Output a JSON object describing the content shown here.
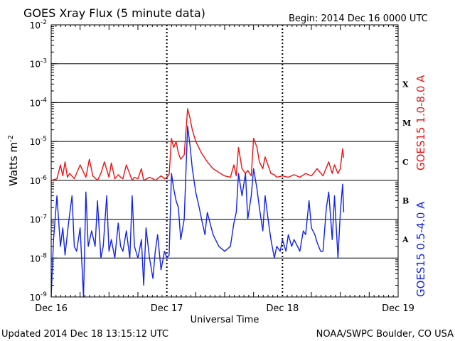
{
  "chart_data": {
    "type": "line",
    "title": "GOES Xray Flux (5 minute data)",
    "begin_label": "Begin:  2014 Dec 16 0000 UTC",
    "xlabel": "Universal Time",
    "ylabel": "Watts m",
    "ylabel_superscript": "-2",
    "y_scale": "log",
    "ylim": [
      1e-09,
      0.01
    ],
    "y_ticks": [
      {
        "base": "10",
        "exp": "-9"
      },
      {
        "base": "10",
        "exp": "-8"
      },
      {
        "base": "10",
        "exp": "-7"
      },
      {
        "base": "10",
        "exp": "-6"
      },
      {
        "base": "10",
        "exp": "-5"
      },
      {
        "base": "10",
        "exp": "-4"
      },
      {
        "base": "10",
        "exp": "-3"
      },
      {
        "base": "10",
        "exp": "-2"
      }
    ],
    "x_ticks": [
      "Dec 16",
      "Dec 17",
      "Dec 18",
      "Dec 19"
    ],
    "x_unit": "days since 2014 Dec 16 0000 UTC",
    "xlim": [
      0,
      3
    ],
    "flare_classes": [
      {
        "label": "A",
        "value": 3e-08
      },
      {
        "label": "B",
        "value": 3e-07
      },
      {
        "label": "C",
        "value": 3e-06
      },
      {
        "label": "M",
        "value": 3e-05
      },
      {
        "label": "X",
        "value": 0.0003
      }
    ],
    "series": [
      {
        "name": "GOES15 1.0-8.0 A",
        "color": "#ee1111",
        "x": [
          0.0,
          0.05,
          0.08,
          0.1,
          0.12,
          0.14,
          0.16,
          0.2,
          0.25,
          0.3,
          0.33,
          0.36,
          0.4,
          0.43,
          0.46,
          0.5,
          0.52,
          0.55,
          0.58,
          0.6,
          0.62,
          0.65,
          0.7,
          0.72,
          0.75,
          0.78,
          0.8,
          0.85,
          0.88,
          0.9,
          0.95,
          0.98,
          1.0,
          1.02,
          1.04,
          1.06,
          1.08,
          1.1,
          1.12,
          1.15,
          1.18,
          1.2,
          1.22,
          1.25,
          1.3,
          1.35,
          1.4,
          1.45,
          1.5,
          1.55,
          1.58,
          1.6,
          1.62,
          1.65,
          1.68,
          1.7,
          1.73,
          1.75,
          1.78,
          1.8,
          1.83,
          1.85,
          1.9,
          1.93,
          1.95,
          2.0,
          2.05,
          2.1,
          2.15,
          2.2,
          2.25,
          2.3,
          2.35,
          2.4,
          2.43,
          2.45,
          2.48,
          2.5,
          2.52,
          2.53
        ],
        "y": [
          1e-06,
          1.1e-06,
          2.5e-06,
          1.3e-06,
          3e-06,
          1.2e-06,
          1.5e-06,
          1.1e-06,
          2.5e-06,
          1.2e-06,
          3.5e-06,
          1.3e-06,
          1e-06,
          1.5e-06,
          3e-06,
          1.2e-06,
          2.8e-06,
          1.1e-06,
          1.4e-06,
          1.2e-06,
          1.1e-06,
          2.5e-06,
          1e-06,
          1.2e-06,
          1.1e-06,
          2e-06,
          1e-06,
          1.2e-06,
          1.1e-06,
          1e-06,
          1.3e-06,
          1.1e-06,
          1.2e-06,
          1.4e-06,
          1.2e-05,
          7e-06,
          1e-05,
          5e-06,
          3.5e-06,
          4.5e-06,
          7e-05,
          4e-05,
          2e-05,
          1e-05,
          5e-06,
          3e-06,
          2e-06,
          1.6e-06,
          1.3e-06,
          1.2e-06,
          2.5e-06,
          1.3e-06,
          7e-06,
          2e-06,
          1.5e-06,
          1.8e-06,
          1.3e-06,
          1.2e-05,
          7e-06,
          3e-06,
          2e-06,
          4e-06,
          1.5e-06,
          1.4e-06,
          1.2e-06,
          1.3e-06,
          1.2e-06,
          1.4e-06,
          1.2e-06,
          1.5e-06,
          1.3e-06,
          2e-06,
          1.3e-06,
          3e-06,
          1.5e-06,
          2.5e-06,
          1.5e-06,
          2e-06,
          6.5e-06,
          3.8e-06
        ]
      },
      {
        "name": "GOES15 0.5-4.0 A",
        "color": "#1122ee",
        "x": [
          0.0,
          0.02,
          0.05,
          0.08,
          0.1,
          0.12,
          0.15,
          0.18,
          0.2,
          0.22,
          0.25,
          0.28,
          0.3,
          0.32,
          0.35,
          0.38,
          0.4,
          0.43,
          0.45,
          0.48,
          0.5,
          0.52,
          0.55,
          0.58,
          0.6,
          0.62,
          0.65,
          0.68,
          0.7,
          0.72,
          0.75,
          0.78,
          0.8,
          0.82,
          0.85,
          0.88,
          0.9,
          0.92,
          0.95,
          0.98,
          1.0,
          1.02,
          1.04,
          1.06,
          1.08,
          1.1,
          1.12,
          1.15,
          1.18,
          1.2,
          1.22,
          1.25,
          1.28,
          1.3,
          1.33,
          1.35,
          1.4,
          1.45,
          1.5,
          1.55,
          1.58,
          1.6,
          1.62,
          1.65,
          1.68,
          1.7,
          1.73,
          1.75,
          1.78,
          1.8,
          1.83,
          1.85,
          1.88,
          1.9,
          1.93,
          1.95,
          1.98,
          2.0,
          2.03,
          2.05,
          2.08,
          2.1,
          2.13,
          2.15,
          2.18,
          2.2,
          2.23,
          2.25,
          2.28,
          2.3,
          2.33,
          2.35,
          2.38,
          2.4,
          2.43,
          2.45,
          2.48,
          2.5,
          2.52,
          2.53
        ],
        "y": [
          1e-09,
          3e-08,
          4e-07,
          2e-08,
          6e-08,
          1.2e-08,
          8e-08,
          4e-07,
          2e-08,
          1.5e-08,
          6e-08,
          1e-09,
          5e-07,
          2e-08,
          5e-08,
          2e-08,
          3e-07,
          1e-08,
          2e-08,
          4e-07,
          1.5e-08,
          3e-08,
          1e-08,
          8e-08,
          2e-08,
          1.5e-08,
          5e-08,
          1e-08,
          4e-07,
          2e-08,
          1e-08,
          3e-08,
          2e-09,
          6e-08,
          1e-08,
          3e-09,
          1.5e-08,
          4e-08,
          5e-09,
          1.5e-08,
          1e-08,
          1.2e-08,
          1.5e-06,
          6e-07,
          3e-07,
          2e-07,
          3e-08,
          1e-07,
          2.5e-05,
          8e-06,
          2e-06,
          5e-07,
          2e-07,
          1e-07,
          4e-08,
          1.5e-07,
          4e-08,
          2e-08,
          1.5e-08,
          2e-08,
          8e-08,
          1.5e-07,
          1.5e-06,
          4e-07,
          1.5e-06,
          1e-07,
          4e-07,
          2e-06,
          6e-07,
          2e-07,
          5e-08,
          4e-07,
          8e-08,
          3e-08,
          1e-08,
          2e-08,
          1.5e-08,
          3e-08,
          1.5e-08,
          4e-08,
          2e-08,
          3e-08,
          2e-08,
          1.5e-08,
          5e-08,
          4e-08,
          3e-07,
          6e-08,
          4e-08,
          2.5e-08,
          1.5e-08,
          1.5e-08,
          2e-07,
          5e-07,
          3e-08,
          4e-07,
          1e-08,
          1.5e-07,
          8e-07,
          1.5e-07
        ]
      }
    ]
  },
  "footer": {
    "updated": "Updated 2014 Dec 18 13:15:12 UTC",
    "credit": "NOAA/SWPC Boulder, CO USA"
  }
}
